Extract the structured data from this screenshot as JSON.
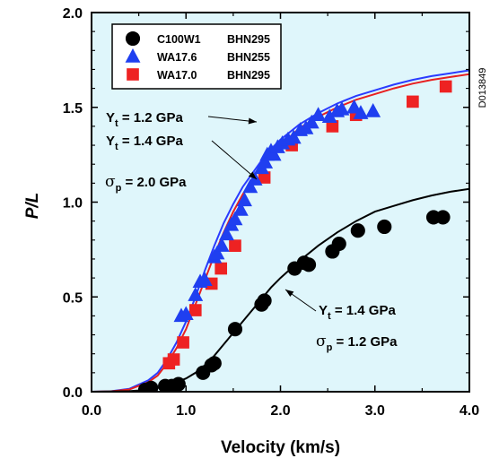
{
  "chart_data": {
    "type": "scatter",
    "title": "",
    "xlabel": "Velocity (km/s)",
    "ylabel": "P/L",
    "xlim": [
      0,
      4.0
    ],
    "ylim": [
      0,
      2.0
    ],
    "x_ticks": [
      "0.0",
      "1.0",
      "2.0",
      "3.0",
      "4.0"
    ],
    "y_ticks": [
      "0.0",
      "0.5",
      "1.0",
      "1.5",
      "2.0"
    ],
    "grid": false,
    "background_color": "#dff6fb",
    "legend_position": "top-left",
    "series": [
      {
        "name": "C100W1",
        "hardness": "BHN295",
        "marker": "circle",
        "color": "#000000",
        "points": [
          [
            0.57,
            0.01
          ],
          [
            0.63,
            0.02
          ],
          [
            0.78,
            0.03
          ],
          [
            0.85,
            0.03
          ],
          [
            0.92,
            0.04
          ],
          [
            1.18,
            0.1
          ],
          [
            1.27,
            0.14
          ],
          [
            1.3,
            0.15
          ],
          [
            1.52,
            0.33
          ],
          [
            1.8,
            0.46
          ],
          [
            1.83,
            0.48
          ],
          [
            2.15,
            0.65
          ],
          [
            2.25,
            0.68
          ],
          [
            2.3,
            0.67
          ],
          [
            2.55,
            0.74
          ],
          [
            2.62,
            0.78
          ],
          [
            2.82,
            0.85
          ],
          [
            3.1,
            0.87
          ],
          [
            3.62,
            0.92
          ],
          [
            3.72,
            0.92
          ]
        ]
      },
      {
        "name": "WA17.6",
        "hardness": "BHN255",
        "marker": "triangle",
        "color": "#1f3ff0",
        "points": [
          [
            0.95,
            0.4
          ],
          [
            1.0,
            0.41
          ],
          [
            1.1,
            0.51
          ],
          [
            1.15,
            0.58
          ],
          [
            1.2,
            0.59
          ],
          [
            1.3,
            0.71
          ],
          [
            1.33,
            0.73
          ],
          [
            1.38,
            0.77
          ],
          [
            1.43,
            0.83
          ],
          [
            1.48,
            0.88
          ],
          [
            1.52,
            0.91
          ],
          [
            1.58,
            0.96
          ],
          [
            1.62,
            1.01
          ],
          [
            1.68,
            1.08
          ],
          [
            1.73,
            1.12
          ],
          [
            1.8,
            1.18
          ],
          [
            1.84,
            1.21
          ],
          [
            1.86,
            1.25
          ],
          [
            1.9,
            1.27
          ],
          [
            1.93,
            1.25
          ],
          [
            1.97,
            1.29
          ],
          [
            2.02,
            1.31
          ],
          [
            2.08,
            1.33
          ],
          [
            2.14,
            1.34
          ],
          [
            2.21,
            1.38
          ],
          [
            2.27,
            1.39
          ],
          [
            2.33,
            1.42
          ],
          [
            2.4,
            1.46
          ],
          [
            2.52,
            1.45
          ],
          [
            2.6,
            1.48
          ],
          [
            2.65,
            1.49
          ],
          [
            2.78,
            1.5
          ],
          [
            2.85,
            1.47
          ],
          [
            2.98,
            1.48
          ]
        ]
      },
      {
        "name": "WA17.0",
        "hardness": "BHN295",
        "marker": "square",
        "color": "#ee2222",
        "points": [
          [
            0.82,
            0.15
          ],
          [
            0.87,
            0.17
          ],
          [
            0.97,
            0.26
          ],
          [
            1.1,
            0.43
          ],
          [
            1.27,
            0.57
          ],
          [
            1.37,
            0.65
          ],
          [
            1.52,
            0.77
          ],
          [
            1.83,
            1.13
          ],
          [
            2.12,
            1.3
          ],
          [
            2.55,
            1.4
          ],
          [
            2.8,
            1.46
          ],
          [
            3.4,
            1.53
          ],
          [
            3.75,
            1.61
          ]
        ]
      }
    ],
    "curves": [
      {
        "label": "Yt = 1.2 GPa, σp = 2.0 GPa",
        "color": "#2a3bff",
        "points": [
          [
            0.0,
            0.0
          ],
          [
            0.2,
            0.002
          ],
          [
            0.4,
            0.015
          ],
          [
            0.6,
            0.06
          ],
          [
            0.7,
            0.1
          ],
          [
            0.8,
            0.17
          ],
          [
            0.9,
            0.26
          ],
          [
            1.0,
            0.37
          ],
          [
            1.1,
            0.5
          ],
          [
            1.2,
            0.64
          ],
          [
            1.3,
            0.77
          ],
          [
            1.4,
            0.89
          ],
          [
            1.5,
            0.99
          ],
          [
            1.6,
            1.08
          ],
          [
            1.7,
            1.15
          ],
          [
            1.8,
            1.22
          ],
          [
            1.9,
            1.28
          ],
          [
            2.0,
            1.33
          ],
          [
            2.2,
            1.41
          ],
          [
            2.4,
            1.47
          ],
          [
            2.6,
            1.52
          ],
          [
            2.8,
            1.56
          ],
          [
            3.0,
            1.59
          ],
          [
            3.2,
            1.62
          ],
          [
            3.4,
            1.645
          ],
          [
            3.6,
            1.665
          ],
          [
            3.8,
            1.68
          ],
          [
            4.0,
            1.695
          ]
        ]
      },
      {
        "label": "Yt = 1.4 GPa, σp = 2.0 GPa",
        "color": "#e82020",
        "points": [
          [
            0.0,
            0.0
          ],
          [
            0.2,
            0.002
          ],
          [
            0.4,
            0.012
          ],
          [
            0.6,
            0.05
          ],
          [
            0.7,
            0.085
          ],
          [
            0.8,
            0.15
          ],
          [
            0.9,
            0.23
          ],
          [
            1.0,
            0.33
          ],
          [
            1.1,
            0.46
          ],
          [
            1.2,
            0.59
          ],
          [
            1.3,
            0.72
          ],
          [
            1.4,
            0.84
          ],
          [
            1.5,
            0.95
          ],
          [
            1.6,
            1.04
          ],
          [
            1.7,
            1.12
          ],
          [
            1.8,
            1.19
          ],
          [
            1.9,
            1.25
          ],
          [
            2.0,
            1.3
          ],
          [
            2.2,
            1.39
          ],
          [
            2.4,
            1.45
          ],
          [
            2.6,
            1.5
          ],
          [
            2.8,
            1.54
          ],
          [
            3.0,
            1.57
          ],
          [
            3.2,
            1.6
          ],
          [
            3.4,
            1.625
          ],
          [
            3.6,
            1.645
          ],
          [
            3.8,
            1.66
          ],
          [
            4.0,
            1.675
          ]
        ]
      },
      {
        "label": "Yt = 1.4 GPa, σp = 1.2 GPa",
        "color": "#000000",
        "points": [
          [
            0.0,
            0.0
          ],
          [
            0.4,
            0.003
          ],
          [
            0.6,
            0.01
          ],
          [
            0.8,
            0.03
          ],
          [
            1.0,
            0.07
          ],
          [
            1.1,
            0.1
          ],
          [
            1.2,
            0.14
          ],
          [
            1.3,
            0.19
          ],
          [
            1.4,
            0.25
          ],
          [
            1.5,
            0.31
          ],
          [
            1.6,
            0.37
          ],
          [
            1.7,
            0.43
          ],
          [
            1.8,
            0.49
          ],
          [
            1.9,
            0.55
          ],
          [
            2.0,
            0.6
          ],
          [
            2.2,
            0.69
          ],
          [
            2.4,
            0.77
          ],
          [
            2.6,
            0.84
          ],
          [
            2.8,
            0.9
          ],
          [
            3.0,
            0.95
          ],
          [
            3.2,
            0.98
          ],
          [
            3.4,
            1.01
          ],
          [
            3.6,
            1.035
          ],
          [
            3.8,
            1.055
          ],
          [
            4.0,
            1.07
          ]
        ]
      }
    ],
    "annotations": [
      {
        "main": "Y",
        "sub": "t",
        "rest": " = 1.2 GPa"
      },
      {
        "main": "Y",
        "sub": "t",
        "rest": " = 1.4 GPa"
      },
      {
        "main": "σ",
        "sub": "p",
        "rest": " = 2.0 GPa"
      },
      {
        "main": "Y",
        "sub": "t",
        "rest": " = 1.4 GPa"
      },
      {
        "main": "σ",
        "sub": "p",
        "rest": " = 1.2 GPa"
      }
    ],
    "side_label": "D013849"
  }
}
